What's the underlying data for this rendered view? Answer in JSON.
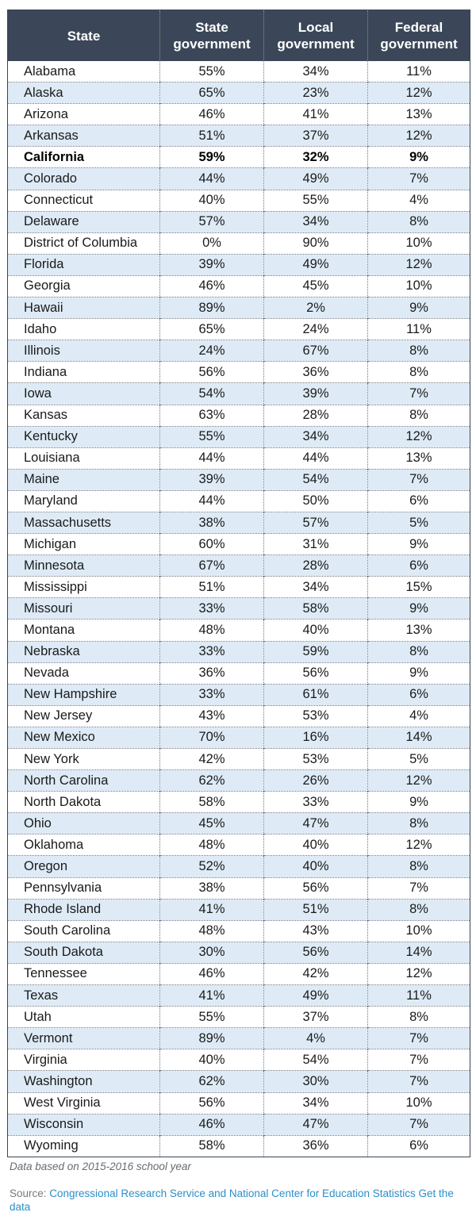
{
  "table": {
    "headers": [
      "State",
      "State government",
      "Local government",
      "Federal government"
    ],
    "highlight": "California",
    "rows": [
      [
        "Alabama",
        "55%",
        "34%",
        "11%"
      ],
      [
        "Alaska",
        "65%",
        "23%",
        "12%"
      ],
      [
        "Arizona",
        "46%",
        "41%",
        "13%"
      ],
      [
        "Arkansas",
        "51%",
        "37%",
        "12%"
      ],
      [
        "California",
        "59%",
        "32%",
        "9%"
      ],
      [
        "Colorado",
        "44%",
        "49%",
        "7%"
      ],
      [
        "Connecticut",
        "40%",
        "55%",
        "4%"
      ],
      [
        "Delaware",
        "57%",
        "34%",
        "8%"
      ],
      [
        "District of Columbia",
        "0%",
        "90%",
        "10%"
      ],
      [
        "Florida",
        "39%",
        "49%",
        "12%"
      ],
      [
        "Georgia",
        "46%",
        "45%",
        "10%"
      ],
      [
        "Hawaii",
        "89%",
        "2%",
        "9%"
      ],
      [
        "Idaho",
        "65%",
        "24%",
        "11%"
      ],
      [
        "Illinois",
        "24%",
        "67%",
        "8%"
      ],
      [
        "Indiana",
        "56%",
        "36%",
        "8%"
      ],
      [
        "Iowa",
        "54%",
        "39%",
        "7%"
      ],
      [
        "Kansas",
        "63%",
        "28%",
        "8%"
      ],
      [
        "Kentucky",
        "55%",
        "34%",
        "12%"
      ],
      [
        "Louisiana",
        "44%",
        "44%",
        "13%"
      ],
      [
        "Maine",
        "39%",
        "54%",
        "7%"
      ],
      [
        "Maryland",
        "44%",
        "50%",
        "6%"
      ],
      [
        "Massachusetts",
        "38%",
        "57%",
        "5%"
      ],
      [
        "Michigan",
        "60%",
        "31%",
        "9%"
      ],
      [
        "Minnesota",
        "67%",
        "28%",
        "6%"
      ],
      [
        "Mississippi",
        "51%",
        "34%",
        "15%"
      ],
      [
        "Missouri",
        "33%",
        "58%",
        "9%"
      ],
      [
        "Montana",
        "48%",
        "40%",
        "13%"
      ],
      [
        "Nebraska",
        "33%",
        "59%",
        "8%"
      ],
      [
        "Nevada",
        "36%",
        "56%",
        "9%"
      ],
      [
        "New Hampshire",
        "33%",
        "61%",
        "6%"
      ],
      [
        "New Jersey",
        "43%",
        "53%",
        "4%"
      ],
      [
        "New Mexico",
        "70%",
        "16%",
        "14%"
      ],
      [
        "New York",
        "42%",
        "53%",
        "5%"
      ],
      [
        "North Carolina",
        "62%",
        "26%",
        "12%"
      ],
      [
        "North Dakota",
        "58%",
        "33%",
        "9%"
      ],
      [
        "Ohio",
        "45%",
        "47%",
        "8%"
      ],
      [
        "Oklahoma",
        "48%",
        "40%",
        "12%"
      ],
      [
        "Oregon",
        "52%",
        "40%",
        "8%"
      ],
      [
        "Pennsylvania",
        "38%",
        "56%",
        "7%"
      ],
      [
        "Rhode Island",
        "41%",
        "51%",
        "8%"
      ],
      [
        "South Carolina",
        "48%",
        "43%",
        "10%"
      ],
      [
        "South Dakota",
        "30%",
        "56%",
        "14%"
      ],
      [
        "Tennessee",
        "46%",
        "42%",
        "12%"
      ],
      [
        "Texas",
        "41%",
        "49%",
        "11%"
      ],
      [
        "Utah",
        "55%",
        "37%",
        "8%"
      ],
      [
        "Vermont",
        "89%",
        "4%",
        "7%"
      ],
      [
        "Virginia",
        "40%",
        "54%",
        "7%"
      ],
      [
        "Washington",
        "62%",
        "30%",
        "7%"
      ],
      [
        "West Virginia",
        "56%",
        "34%",
        "10%"
      ],
      [
        "Wisconsin",
        "46%",
        "47%",
        "7%"
      ],
      [
        "Wyoming",
        "58%",
        "36%",
        "6%"
      ]
    ]
  },
  "footer": {
    "note": "Data based on 2015-2016 school year",
    "source_label": "Source: ",
    "source_link": "Congressional Research Service and National Center for Education Statistics",
    "get_data_link": "Get the data"
  },
  "colors": {
    "header_bg": "#3b4758",
    "alt_row_bg": "#deebf6",
    "link": "#2b8fc9"
  }
}
